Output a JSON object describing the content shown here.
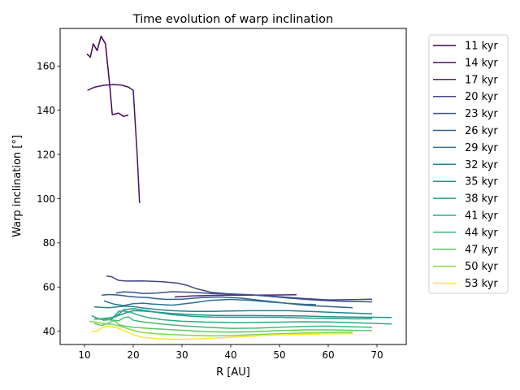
{
  "chart_data": {
    "type": "line",
    "title": "Time evolution of warp inclination",
    "xlabel": "R [AU]",
    "ylabel": "Warp inclination [°]",
    "xlim": [
      5,
      76
    ],
    "ylim": [
      34,
      177
    ],
    "xticks": [
      10,
      20,
      30,
      40,
      50,
      60,
      70
    ],
    "yticks": [
      40,
      60,
      80,
      100,
      120,
      140,
      160
    ],
    "grid": false,
    "legend_position": "outside-right",
    "colormap": "viridis",
    "series": [
      {
        "name": "11 kyr",
        "color": "#440154",
        "points": [
          [
            10.5,
            165.5
          ],
          [
            11.2,
            164
          ],
          [
            11.8,
            170
          ],
          [
            12.6,
            167
          ],
          [
            13.4,
            173.5
          ],
          [
            14.3,
            170
          ],
          [
            15.1,
            153
          ],
          [
            15.7,
            138
          ],
          [
            17,
            138.7
          ],
          [
            18,
            137.2
          ],
          [
            19,
            137.8
          ]
        ]
      },
      {
        "name": "14 kyr",
        "color": "#471365",
        "points": [
          [
            10.6,
            149
          ],
          [
            12,
            150.4
          ],
          [
            14,
            151.3
          ],
          [
            16,
            151.6
          ],
          [
            17.5,
            151.4
          ],
          [
            19,
            150.5
          ],
          [
            20,
            149
          ],
          [
            20.8,
            120
          ],
          [
            21.3,
            98
          ]
        ]
      },
      {
        "name": "17 kyr",
        "color": "#482475",
        "points": [
          [
            28.5,
            55.5
          ],
          [
            32,
            56
          ],
          [
            36,
            56.2
          ],
          [
            40,
            56.4
          ],
          [
            44,
            56.3
          ],
          [
            48,
            56.4
          ],
          [
            53.5,
            56.5
          ]
        ]
      },
      {
        "name": "20 kyr",
        "color": "#414487",
        "points": [
          [
            14.5,
            65
          ],
          [
            15.5,
            64.7
          ],
          [
            17,
            63
          ],
          [
            18.5,
            62.7
          ],
          [
            22,
            62.8
          ],
          [
            26,
            62.4
          ],
          [
            29,
            61.8
          ],
          [
            31,
            60.8
          ],
          [
            33,
            59.2
          ],
          [
            36,
            57.6
          ],
          [
            40,
            56.8
          ],
          [
            45,
            56.4
          ],
          [
            50,
            55.6
          ],
          [
            55,
            54.8
          ],
          [
            60,
            54.2
          ],
          [
            65,
            54.3
          ],
          [
            69,
            54.5
          ]
        ]
      },
      {
        "name": "23 kyr",
        "color": "#3b528b",
        "points": [
          [
            16.5,
            57.3
          ],
          [
            18,
            57.8
          ],
          [
            20,
            57.6
          ],
          [
            22,
            57.1
          ],
          [
            25,
            57.3
          ],
          [
            28,
            57.9
          ],
          [
            32,
            57.6
          ],
          [
            36,
            57.1
          ],
          [
            40,
            56.9
          ],
          [
            44,
            56.5
          ],
          [
            48,
            55.8
          ],
          [
            52,
            55
          ],
          [
            56,
            54.3
          ],
          [
            60,
            53.8
          ],
          [
            64,
            53.5
          ],
          [
            69,
            53.3
          ]
        ]
      },
      {
        "name": "26 kyr",
        "color": "#355f8d",
        "points": [
          [
            13.5,
            56.3
          ],
          [
            15,
            56.6
          ],
          [
            17,
            56.4
          ],
          [
            19,
            55.8
          ],
          [
            21,
            55.4
          ],
          [
            23,
            55.2
          ],
          [
            25,
            54.7
          ],
          [
            27,
            54.4
          ],
          [
            30,
            54.5
          ],
          [
            34,
            55.2
          ],
          [
            38,
            55.5
          ],
          [
            42,
            55
          ],
          [
            46,
            54
          ],
          [
            50,
            53
          ],
          [
            54,
            52
          ],
          [
            57,
            51.5
          ],
          [
            60,
            51.2
          ],
          [
            65,
            50.6
          ]
        ]
      },
      {
        "name": "29 kyr",
        "color": "#2c728e",
        "points": [
          [
            14,
            53.7
          ],
          [
            16,
            52.3
          ],
          [
            18,
            51.6
          ],
          [
            20,
            52.5
          ],
          [
            22,
            52.7
          ],
          [
            24,
            52.3
          ],
          [
            28,
            51.8
          ],
          [
            32,
            52.8
          ],
          [
            36,
            54
          ],
          [
            40,
            54.4
          ],
          [
            44,
            54
          ],
          [
            48,
            53.2
          ],
          [
            52,
            52.6
          ],
          [
            55,
            52.2
          ],
          [
            57.5,
            52.1
          ]
        ]
      },
      {
        "name": "32 kyr",
        "color": "#26828e",
        "points": [
          [
            12,
            51
          ],
          [
            15,
            50.6
          ],
          [
            18,
            51.3
          ],
          [
            20,
            51.2
          ],
          [
            22,
            50.5
          ],
          [
            25,
            49.8
          ],
          [
            28,
            49.3
          ],
          [
            32,
            49
          ],
          [
            36,
            49
          ],
          [
            40,
            49.2
          ],
          [
            44,
            49.3
          ],
          [
            48,
            49.3
          ],
          [
            52,
            49.3
          ],
          [
            56,
            49
          ],
          [
            60,
            48.6
          ],
          [
            64,
            48.3
          ],
          [
            69,
            47.9
          ]
        ]
      },
      {
        "name": "35 kyr",
        "color": "#21918c",
        "points": [
          [
            12,
            45.5
          ],
          [
            14,
            45.8
          ],
          [
            16,
            46.3
          ],
          [
            18,
            48
          ],
          [
            20,
            49.3
          ],
          [
            22,
            49.2
          ],
          [
            25,
            48.6
          ],
          [
            28,
            48
          ],
          [
            32,
            47.5
          ],
          [
            36,
            47.2
          ],
          [
            40,
            47.1
          ],
          [
            45,
            47.1
          ],
          [
            50,
            47
          ],
          [
            55,
            46.9
          ],
          [
            60,
            46.6
          ],
          [
            65,
            46.4
          ],
          [
            73,
            46.2
          ]
        ]
      },
      {
        "name": "38 kyr",
        "color": "#1fa088",
        "points": [
          [
            11.5,
            47
          ],
          [
            12.5,
            46
          ],
          [
            14,
            45
          ],
          [
            15.5,
            45.5
          ],
          [
            17,
            47.7
          ],
          [
            18,
            49.7
          ],
          [
            20,
            50.3
          ],
          [
            22,
            49.5
          ],
          [
            25,
            48.5
          ],
          [
            28,
            47.5
          ],
          [
            32,
            46.8
          ],
          [
            36,
            46.4
          ],
          [
            40,
            46.3
          ],
          [
            45,
            46.3
          ],
          [
            50,
            46.3
          ],
          [
            55,
            46
          ],
          [
            60,
            45.8
          ],
          [
            65,
            45.6
          ],
          [
            69,
            45.6
          ]
        ]
      },
      {
        "name": "41 kyr",
        "color": "#28ae80",
        "points": [
          [
            12,
            45.5
          ],
          [
            14,
            45.5
          ],
          [
            16,
            46.5
          ],
          [
            17,
            49
          ],
          [
            18,
            49.2
          ],
          [
            19.5,
            48.6
          ],
          [
            21,
            47.3
          ],
          [
            23,
            46.2
          ],
          [
            26,
            45.2
          ],
          [
            30,
            44.5
          ],
          [
            34,
            44.2
          ],
          [
            38,
            44
          ],
          [
            42,
            43.9
          ],
          [
            46,
            44
          ],
          [
            50,
            44.1
          ],
          [
            55,
            44.3
          ],
          [
            60,
            44.2
          ],
          [
            65,
            43.9
          ],
          [
            73,
            43.3
          ]
        ]
      },
      {
        "name": "44 kyr",
        "color": "#3fbc73",
        "points": [
          [
            12.5,
            46
          ],
          [
            14,
            45.3
          ],
          [
            16,
            45
          ],
          [
            17,
            44.7
          ],
          [
            18,
            46
          ],
          [
            19,
            46.5
          ],
          [
            20,
            45
          ],
          [
            22,
            44.2
          ],
          [
            25,
            43.4
          ],
          [
            30,
            42.5
          ],
          [
            35,
            41.8
          ],
          [
            40,
            41.3
          ],
          [
            45,
            41.4
          ],
          [
            50,
            41.8
          ],
          [
            55,
            42.2
          ],
          [
            60,
            42.3
          ],
          [
            65,
            42
          ],
          [
            69,
            41.8
          ]
        ]
      },
      {
        "name": "47 kyr",
        "color": "#5ec962",
        "points": [
          [
            12,
            43.5
          ],
          [
            13.5,
            42.6
          ],
          [
            15,
            43.7
          ],
          [
            16,
            45
          ],
          [
            17,
            43
          ],
          [
            18,
            42.4
          ],
          [
            20,
            41.8
          ],
          [
            23,
            41.3
          ],
          [
            27,
            40.8
          ],
          [
            31,
            40.3
          ],
          [
            35,
            39.8
          ],
          [
            40,
            39.6
          ],
          [
            45,
            39.8
          ],
          [
            50,
            40.3
          ],
          [
            55,
            40.6
          ],
          [
            60,
            40.6
          ],
          [
            65,
            40.4
          ],
          [
            69,
            40.3
          ]
        ]
      },
      {
        "name": "50 kyr",
        "color": "#84d44b",
        "points": [
          [
            11,
            44.5
          ],
          [
            12.5,
            44
          ],
          [
            14,
            43.5
          ],
          [
            16,
            43
          ],
          [
            18,
            41.8
          ],
          [
            20,
            40.4
          ],
          [
            22,
            39.4
          ],
          [
            25,
            38.8
          ],
          [
            28,
            38.5
          ],
          [
            32,
            38.1
          ],
          [
            36,
            37.9
          ],
          [
            40,
            38
          ],
          [
            45,
            38.5
          ],
          [
            50,
            38.9
          ],
          [
            55,
            39.2
          ],
          [
            60,
            39.4
          ],
          [
            65,
            39.5
          ]
        ]
      },
      {
        "name": "53 kyr",
        "color": "#fde725",
        "points": [
          [
            11.5,
            40
          ],
          [
            12.5,
            40
          ],
          [
            13.5,
            41.5
          ],
          [
            14.5,
            42.2
          ],
          [
            15.5,
            42.2
          ],
          [
            16.5,
            41.7
          ],
          [
            18,
            40.4
          ],
          [
            20,
            38.4
          ],
          [
            22,
            37.2
          ],
          [
            25,
            36.6
          ],
          [
            28,
            36.4
          ],
          [
            31,
            36.4
          ],
          [
            34,
            36.6
          ],
          [
            38,
            37
          ],
          [
            42,
            37.5
          ],
          [
            46,
            38
          ],
          [
            50,
            38.4
          ],
          [
            55,
            38.6
          ],
          [
            60,
            38.8
          ],
          [
            65,
            38.9
          ]
        ]
      }
    ]
  }
}
